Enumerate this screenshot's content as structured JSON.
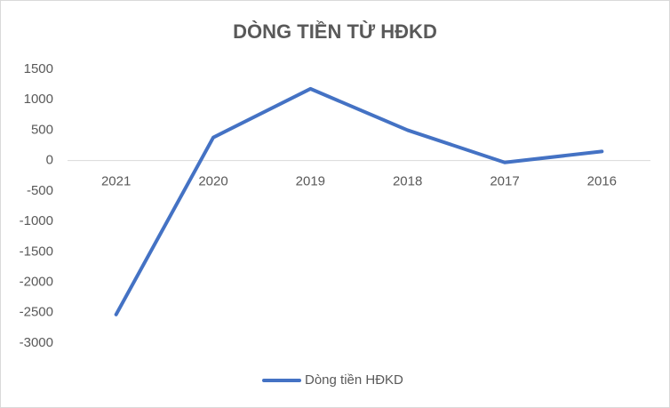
{
  "chart_data": {
    "type": "line",
    "title": "DÒNG TIỀN TỪ HĐKD",
    "categories": [
      "2021",
      "2020",
      "2019",
      "2018",
      "2017",
      "2016"
    ],
    "series": [
      {
        "name": "Dòng tiền HĐKD",
        "color": "#4472c4",
        "values": [
          -2530,
          380,
          1180,
          500,
          -30,
          150
        ]
      }
    ],
    "ylim": [
      -3000,
      1500
    ],
    "yticks": [
      -3000,
      -2500,
      -2000,
      -1500,
      -1000,
      -500,
      0,
      500,
      1000,
      1500
    ],
    "grid": false,
    "legend": "bottom"
  }
}
